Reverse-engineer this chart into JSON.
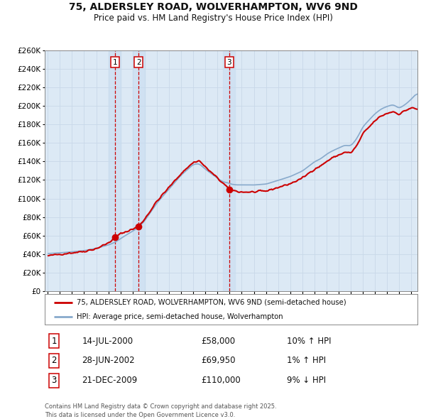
{
  "title_line1": "75, ALDERSLEY ROAD, WOLVERHAMPTON, WV6 9ND",
  "title_line2": "Price paid vs. HM Land Registry's House Price Index (HPI)",
  "ylim": [
    0,
    260000
  ],
  "ytick_step": 20000,
  "background_color": "#ffffff",
  "plot_bg_color": "#dce9f5",
  "grid_color": "#c8d8e8",
  "line_color_property": "#cc0000",
  "line_color_hpi": "#88aacc",
  "sale_marker_color": "#cc0000",
  "vline_color": "#cc0000",
  "vline_shade_color": "#c8d8ee",
  "legend_property": "75, ALDERSLEY ROAD, WOLVERHAMPTON, WV6 9ND (semi-detached house)",
  "legend_hpi": "HPI: Average price, semi-detached house, Wolverhampton",
  "transactions": [
    {
      "num": 1,
      "date": "14-JUL-2000",
      "date_decimal": 2000.54,
      "price": 58000,
      "pct": "10%",
      "direction": "↑"
    },
    {
      "num": 2,
      "date": "28-JUN-2002",
      "date_decimal": 2002.49,
      "price": 69950,
      "pct": "1%",
      "direction": "↑"
    },
    {
      "num": 3,
      "date": "21-DEC-2009",
      "date_decimal": 2009.97,
      "price": 110000,
      "pct": "9%",
      "direction": "↓"
    }
  ],
  "footnote": "Contains HM Land Registry data © Crown copyright and database right 2025.\nThis data is licensed under the Open Government Licence v3.0.",
  "xmin": 1994.75,
  "xmax": 2025.5,
  "figsize": [
    6.0,
    5.9
  ],
  "dpi": 100
}
